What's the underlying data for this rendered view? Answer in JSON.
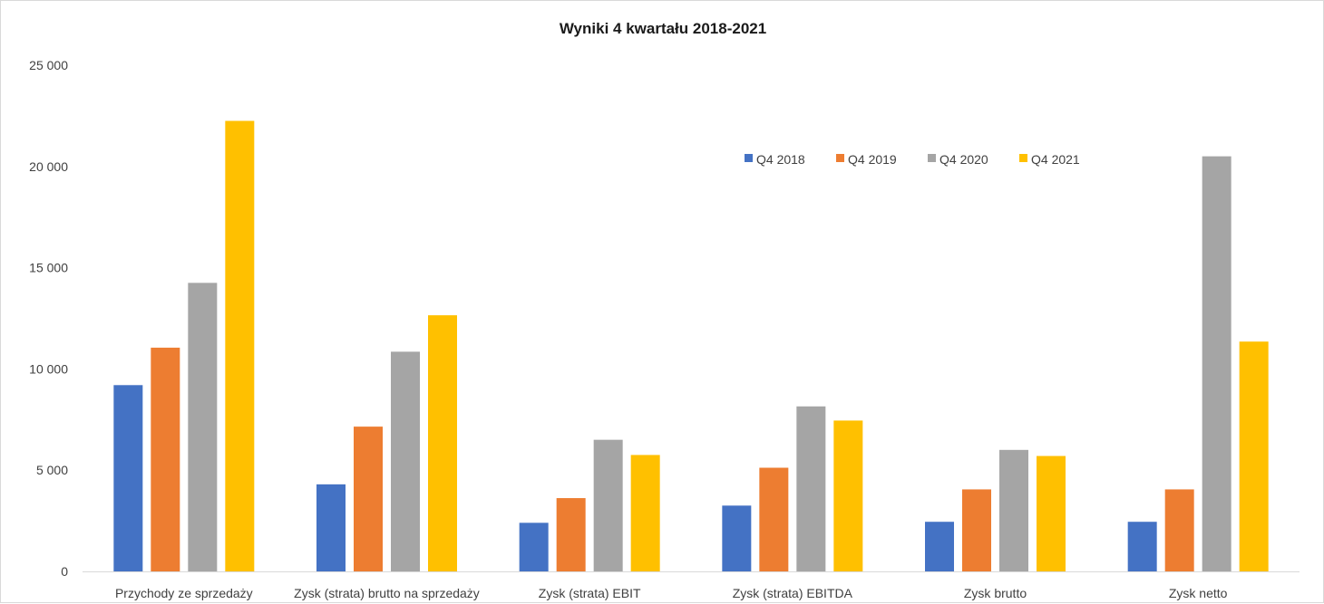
{
  "chart_data": {
    "type": "bar",
    "title": "Wyniki 4 kwartału 2018-2021",
    "xlabel": "",
    "ylabel": "",
    "ylim": [
      0,
      25000
    ],
    "yticks": [
      0,
      5000,
      10000,
      15000,
      20000,
      25000
    ],
    "ytick_labels": [
      "0",
      "5 000",
      "10 000",
      "15 000",
      "20 000",
      "25 000"
    ],
    "grid": false,
    "legend_position": "top-right",
    "categories": [
      "Przychody ze sprzedaży",
      "Zysk (strata) brutto na sprzedaży",
      "Zysk (strata) EBIT",
      "Zysk (strata) EBITDA",
      "Zysk brutto",
      "Zysk netto"
    ],
    "series": [
      {
        "name": "Q4 2018",
        "color": "#4472C4",
        "values": [
          9200,
          4300,
          2400,
          3250,
          2450,
          2450
        ]
      },
      {
        "name": "Q4 2019",
        "color": "#ED7D31",
        "values": [
          11050,
          7150,
          3620,
          5120,
          4050,
          4050
        ]
      },
      {
        "name": "Q4 2020",
        "color": "#A5A5A5",
        "values": [
          14250,
          10850,
          6500,
          8150,
          6000,
          20500
        ]
      },
      {
        "name": "Q4 2021",
        "color": "#FFC000",
        "values": [
          22250,
          12650,
          5750,
          7450,
          5700,
          11350
        ]
      }
    ]
  }
}
